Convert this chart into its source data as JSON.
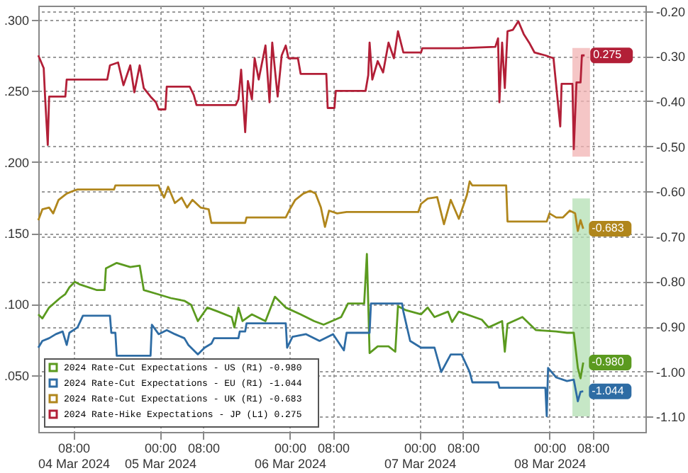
{
  "chart_data": {
    "type": "line",
    "legend": "bottom left",
    "grid": true,
    "xlim": [
      "2024-03-04T01:30",
      "2024-03-08T17:45"
    ],
    "xticks": [
      {
        "value": "2024-03-04T08:00",
        "label": "08:00\n04 Mar 2024"
      },
      {
        "value": "2024-03-05T00:00",
        "label": "00:00\n05 Mar 2024"
      },
      {
        "value": "2024-03-05T08:00",
        "label": "08:00"
      },
      {
        "value": "2024-03-06T00:00",
        "label": "00:00\n06 Mar 2024"
      },
      {
        "value": "2024-03-06T08:00",
        "label": "08:00"
      },
      {
        "value": "2024-03-07T00:00",
        "label": "00:00\n07 Mar 2024"
      },
      {
        "value": "2024-03-07T08:00",
        "label": "08:00"
      },
      {
        "value": "2024-03-08T00:00",
        "label": "00:00\n08 Mar 2024"
      },
      {
        "value": "2024-03-08T08:00",
        "label": "08:00"
      }
    ],
    "ylim": [
      0.01,
      0.31
    ],
    "yticks": [
      {
        "value": 0.05,
        "label": ".050"
      },
      {
        "value": 0.1,
        "label": ".100"
      },
      {
        "value": 0.15,
        "label": ".150"
      },
      {
        "value": 0.2,
        "label": ".200"
      },
      {
        "value": 0.25,
        "label": ".250"
      },
      {
        "value": 0.3,
        "label": ".300"
      }
    ],
    "y2lim": [
      -1.134,
      -0.188
    ],
    "y2ticks": [
      {
        "value": -1.1,
        "label": "-1.10"
      },
      {
        "value": -1.0,
        "label": "-1.00"
      },
      {
        "value": -0.9,
        "label": "-0.90"
      },
      {
        "value": -0.8,
        "label": "-0.80"
      },
      {
        "value": -0.7,
        "label": "-0.70"
      },
      {
        "value": -0.6,
        "label": "-0.60"
      },
      {
        "value": -0.5,
        "label": "-0.50"
      },
      {
        "value": -0.4,
        "label": "-0.40"
      },
      {
        "value": -0.3,
        "label": "-0.30"
      },
      {
        "value": -0.2,
        "label": "-0.20"
      }
    ],
    "bands": [
      {
        "axis": "x",
        "from": "2024-03-08T04:15",
        "to": "2024-03-08T07:30",
        "color": "#f2b3b3"
      },
      {
        "axis": "x",
        "from": "2024-03-08T04:15",
        "to": "2024-03-08T07:30",
        "color": "#b3dfb3"
      }
    ],
    "annotations": [
      "-0.980",
      "-1.044",
      "-0.683",
      "0.275"
    ],
    "series": [
      {
        "name": "2024 Rate-Cut Expectations - US (R1)   -0.980",
        "color": "#5b9a1f",
        "axis": "y2",
        "x": [
          "2024-03-04T01:30",
          "2024-03-04T02:15",
          "2024-03-04T03:30",
          "2024-03-04T05:30",
          "2024-03-04T06:30",
          "2024-03-04T07:15",
          "2024-03-04T08:15",
          "2024-03-04T09:15",
          "2024-03-04T12:15",
          "2024-03-04T13:45",
          "2024-03-04T14:00",
          "2024-03-04T16:00",
          "2024-03-04T18:30",
          "2024-03-04T20:15",
          "2024-03-04T21:00",
          "2024-03-04T23:30",
          "2024-03-05T02:00",
          "2024-03-05T04:30",
          "2024-03-05T05:45",
          "2024-03-05T07:00",
          "2024-03-05T08:45",
          "2024-03-05T10:45",
          "2024-03-05T13:15",
          "2024-03-05T13:45",
          "2024-03-05T14:30",
          "2024-03-05T15:15",
          "2024-03-05T17:00",
          "2024-03-05T19:30",
          "2024-03-05T21:15",
          "2024-03-05T23:15",
          "2024-03-06T02:00",
          "2024-03-06T04:30",
          "2024-03-06T06:15",
          "2024-03-06T09:30",
          "2024-03-06T10:45",
          "2024-03-06T13:45",
          "2024-03-06T14:15",
          "2024-03-06T14:45",
          "2024-03-06T16:15",
          "2024-03-06T18:15",
          "2024-03-06T19:30",
          "2024-03-06T20:00",
          "2024-03-06T21:30",
          "2024-03-07T00:15",
          "2024-03-07T01:30",
          "2024-03-07T02:45",
          "2024-03-07T05:15",
          "2024-03-07T06:00",
          "2024-03-07T07:15",
          "2024-03-07T11:30",
          "2024-03-07T12:45",
          "2024-03-07T15:15",
          "2024-03-07T15:45",
          "2024-03-07T16:15",
          "2024-03-07T19:00",
          "2024-03-07T21:30",
          "2024-03-08T01:15",
          "2024-03-08T03:15",
          "2024-03-08T04:30",
          "2024-03-08T05:15",
          "2024-03-08T05:45",
          "2024-03-08T06:15"
        ],
        "values": [
          -0.873,
          -0.882,
          -0.858,
          -0.837,
          -0.828,
          -0.813,
          -0.801,
          -0.807,
          -0.819,
          -0.819,
          -0.771,
          -0.759,
          -0.768,
          -0.765,
          -0.819,
          -0.828,
          -0.837,
          -0.843,
          -0.852,
          -0.888,
          -0.858,
          -0.867,
          -0.879,
          -0.902,
          -0.858,
          -0.888,
          -0.873,
          -0.888,
          -0.834,
          -0.858,
          -0.873,
          -0.888,
          -0.896,
          -0.879,
          -0.849,
          -0.849,
          -0.739,
          -0.959,
          -0.944,
          -0.944,
          -0.956,
          -0.855,
          -0.864,
          -0.873,
          -0.858,
          -0.879,
          -0.867,
          -0.89,
          -0.867,
          -0.885,
          -0.902,
          -0.888,
          -0.956,
          -0.894,
          -0.879,
          -0.908,
          -0.911,
          -0.914,
          -0.914,
          -0.992,
          -1.015,
          -0.98
        ]
      },
      {
        "name": "2024 Rate-Cut Expectations - EU (R1)   -1.044",
        "color": "#2e6ca4",
        "axis": "y2",
        "x": [
          "2024-03-04T01:30",
          "2024-03-04T02:15",
          "2024-03-04T03:30",
          "2024-03-04T04:45",
          "2024-03-04T06:00",
          "2024-03-04T06:45",
          "2024-03-04T07:15",
          "2024-03-04T08:45",
          "2024-03-04T09:45",
          "2024-03-04T14:45",
          "2024-03-04T15:00",
          "2024-03-04T15:45",
          "2024-03-04T16:00",
          "2024-03-04T22:15",
          "2024-03-04T22:30",
          "2024-03-04T23:45",
          "2024-03-05T01:15",
          "2024-03-05T02:45",
          "2024-03-05T04:30",
          "2024-03-05T05:15",
          "2024-03-05T07:00",
          "2024-03-05T08:15",
          "2024-03-05T09:30",
          "2024-03-05T10:00",
          "2024-03-05T14:30",
          "2024-03-05T14:45",
          "2024-03-05T15:45",
          "2024-03-05T16:00",
          "2024-03-05T23:15",
          "2024-03-05T23:30",
          "2024-03-06T00:30",
          "2024-03-06T03:00",
          "2024-03-06T05:30",
          "2024-03-06T08:00",
          "2024-03-06T10:00",
          "2024-03-06T10:30",
          "2024-03-06T14:45",
          "2024-03-06T15:00",
          "2024-03-06T20:45",
          "2024-03-06T21:00",
          "2024-03-06T22:15",
          "2024-03-07T00:15",
          "2024-03-07T02:45",
          "2024-03-07T04:00",
          "2024-03-07T05:45",
          "2024-03-07T07:45",
          "2024-03-07T09:15",
          "2024-03-07T09:45",
          "2024-03-07T14:30",
          "2024-03-07T14:45",
          "2024-03-07T23:15",
          "2024-03-07T23:30",
          "2024-03-07T23:45",
          "2024-03-08T01:15",
          "2024-03-08T03:15",
          "2024-03-08T04:30",
          "2024-03-08T05:15",
          "2024-03-08T05:45",
          "2024-03-08T06:15"
        ],
        "values": [
          -0.947,
          -0.932,
          -0.926,
          -0.917,
          -0.911,
          -0.941,
          -0.914,
          -0.902,
          -0.876,
          -0.876,
          -0.914,
          -0.914,
          -0.965,
          -0.965,
          -0.896,
          -0.917,
          -0.908,
          -0.917,
          -0.926,
          -0.941,
          -0.962,
          -0.947,
          -0.938,
          -0.926,
          -0.926,
          -0.911,
          -0.911,
          -0.893,
          -0.893,
          -0.947,
          -0.923,
          -0.917,
          -0.932,
          -0.917,
          -0.953,
          -0.914,
          -0.914,
          -0.849,
          -0.849,
          -0.867,
          -0.932,
          -0.947,
          -0.947,
          -1.001,
          -0.962,
          -0.962,
          -1.001,
          -1.024,
          -1.024,
          -1.036,
          -1.036,
          -1.099,
          -0.992,
          -1.013,
          -1.021,
          -1.018,
          -1.066,
          -1.045,
          -1.044
        ]
      },
      {
        "name": "2024 Rate-Cut Expectations - UK (R1)   -0.683",
        "color": "#b0861c",
        "axis": "y2",
        "x": [
          "2024-03-04T01:30",
          "2024-03-04T02:15",
          "2024-03-04T03:30",
          "2024-03-04T04:15",
          "2024-03-04T05:15",
          "2024-03-04T06:45",
          "2024-03-04T08:00",
          "2024-03-04T08:45",
          "2024-03-04T15:30",
          "2024-03-04T15:45",
          "2024-03-04T23:45",
          "2024-03-05T00:00",
          "2024-03-05T00:45",
          "2024-03-05T01:30",
          "2024-03-05T02:45",
          "2024-03-05T04:00",
          "2024-03-05T05:00",
          "2024-03-05T06:00",
          "2024-03-05T07:30",
          "2024-03-05T09:00",
          "2024-03-05T09:30",
          "2024-03-05T15:45",
          "2024-03-05T16:00",
          "2024-03-05T23:15",
          "2024-03-06T00:00",
          "2024-03-06T01:00",
          "2024-03-06T02:30",
          "2024-03-06T03:45",
          "2024-03-06T04:45",
          "2024-03-06T05:45",
          "2024-03-06T06:30",
          "2024-03-06T07:15",
          "2024-03-06T08:45",
          "2024-03-06T10:30",
          "2024-03-06T23:45",
          "2024-03-07T00:15",
          "2024-03-07T01:30",
          "2024-03-07T03:15",
          "2024-03-07T04:30",
          "2024-03-07T05:45",
          "2024-03-07T07:15",
          "2024-03-07T08:45",
          "2024-03-07T09:15",
          "2024-03-07T09:45",
          "2024-03-07T16:00",
          "2024-03-07T16:15",
          "2024-03-07T23:30",
          "2024-03-08T00:00",
          "2024-03-08T01:15",
          "2024-03-08T02:30",
          "2024-03-08T03:45",
          "2024-03-08T04:45",
          "2024-03-08T05:15",
          "2024-03-08T05:45",
          "2024-03-08T06:15"
        ],
        "values": [
          -0.664,
          -0.64,
          -0.636,
          -0.649,
          -0.619,
          -0.605,
          -0.599,
          -0.596,
          -0.596,
          -0.587,
          -0.587,
          -0.596,
          -0.614,
          -0.59,
          -0.626,
          -0.614,
          -0.636,
          -0.619,
          -0.636,
          -0.64,
          -0.67,
          -0.67,
          -0.658,
          -0.658,
          -0.64,
          -0.619,
          -0.605,
          -0.599,
          -0.605,
          -0.636,
          -0.679,
          -0.643,
          -0.649,
          -0.646,
          -0.646,
          -0.628,
          -0.616,
          -0.613,
          -0.673,
          -0.619,
          -0.661,
          -0.608,
          -0.578,
          -0.587,
          -0.587,
          -0.667,
          -0.667,
          -0.649,
          -0.658,
          -0.658,
          -0.643,
          -0.649,
          -0.688,
          -0.664,
          -0.683
        ]
      },
      {
        "name": "2024 Rate-Hike Expectations - JP (L1) 0.275",
        "color": "#b21f37",
        "x": [
          "2024-03-04T01:30",
          "2024-03-04T02:30",
          "2024-03-04T02:45",
          "2024-03-04T03:15",
          "2024-03-04T03:30",
          "2024-03-04T06:30",
          "2024-03-04T06:45",
          "2024-03-04T14:15",
          "2024-03-04T14:45",
          "2024-03-04T16:15",
          "2024-03-04T17:15",
          "2024-03-04T18:30",
          "2024-03-04T19:15",
          "2024-03-04T20:15",
          "2024-03-04T21:00",
          "2024-03-04T22:15",
          "2024-03-04T23:15",
          "2024-03-04T23:45",
          "2024-03-05T01:00",
          "2024-03-05T01:15",
          "2024-03-05T05:30",
          "2024-03-05T06:15",
          "2024-03-05T06:45",
          "2024-03-05T14:00",
          "2024-03-05T14:30",
          "2024-03-05T15:00",
          "2024-03-05T15:45",
          "2024-03-05T16:15",
          "2024-03-05T17:00",
          "2024-03-05T17:30",
          "2024-03-05T18:15",
          "2024-03-05T19:30",
          "2024-03-05T20:15",
          "2024-03-05T20:45",
          "2024-03-05T21:45",
          "2024-03-05T22:30",
          "2024-03-05T23:15",
          "2024-03-05T23:45",
          "2024-03-06T01:30",
          "2024-03-06T02:00",
          "2024-03-06T06:45",
          "2024-03-06T07:00",
          "2024-03-06T08:15",
          "2024-03-06T08:30",
          "2024-03-06T14:00",
          "2024-03-06T14:30",
          "2024-03-06T14:45",
          "2024-03-06T15:15",
          "2024-03-06T16:15",
          "2024-03-06T17:15",
          "2024-03-06T18:15",
          "2024-03-06T19:15",
          "2024-03-06T20:00",
          "2024-03-06T21:00",
          "2024-03-07T00:15",
          "2024-03-07T00:30",
          "2024-03-07T07:15",
          "2024-03-07T14:00",
          "2024-03-07T14:30",
          "2024-03-07T14:45",
          "2024-03-07T15:15",
          "2024-03-07T15:45",
          "2024-03-07T16:15",
          "2024-03-07T17:15",
          "2024-03-07T18:15",
          "2024-03-07T19:15",
          "2024-03-07T20:15",
          "2024-03-07T21:15",
          "2024-03-07T23:15",
          "2024-03-08T00:45",
          "2024-03-08T02:00",
          "2024-03-08T02:15",
          "2024-03-08T04:15",
          "2024-03-08T04:30",
          "2024-03-08T05:00",
          "2024-03-08T05:45",
          "2024-03-08T06:00",
          "2024-03-08T06:30"
        ],
        "values": [
          0.275,
          0.266,
          0.246,
          0.212,
          0.246,
          0.246,
          0.258,
          0.258,
          0.268,
          0.27,
          0.254,
          0.268,
          0.249,
          0.268,
          0.252,
          0.246,
          0.242,
          0.237,
          0.237,
          0.253,
          0.253,
          0.247,
          0.24,
          0.24,
          0.244,
          0.265,
          0.221,
          0.257,
          0.244,
          0.273,
          0.258,
          0.282,
          0.242,
          0.284,
          0.246,
          0.275,
          0.282,
          0.273,
          0.273,
          0.262,
          0.262,
          0.238,
          0.238,
          0.25,
          0.25,
          0.261,
          0.284,
          0.258,
          0.271,
          0.263,
          0.284,
          0.273,
          0.292,
          0.277,
          0.277,
          0.28,
          0.28,
          0.281,
          0.287,
          0.242,
          0.284,
          0.252,
          0.292,
          0.293,
          0.299,
          0.29,
          0.284,
          0.277,
          0.275,
          0.273,
          0.225,
          0.255,
          0.255,
          0.209,
          0.256,
          0.256,
          0.275,
          0.275
        ]
      }
    ]
  }
}
